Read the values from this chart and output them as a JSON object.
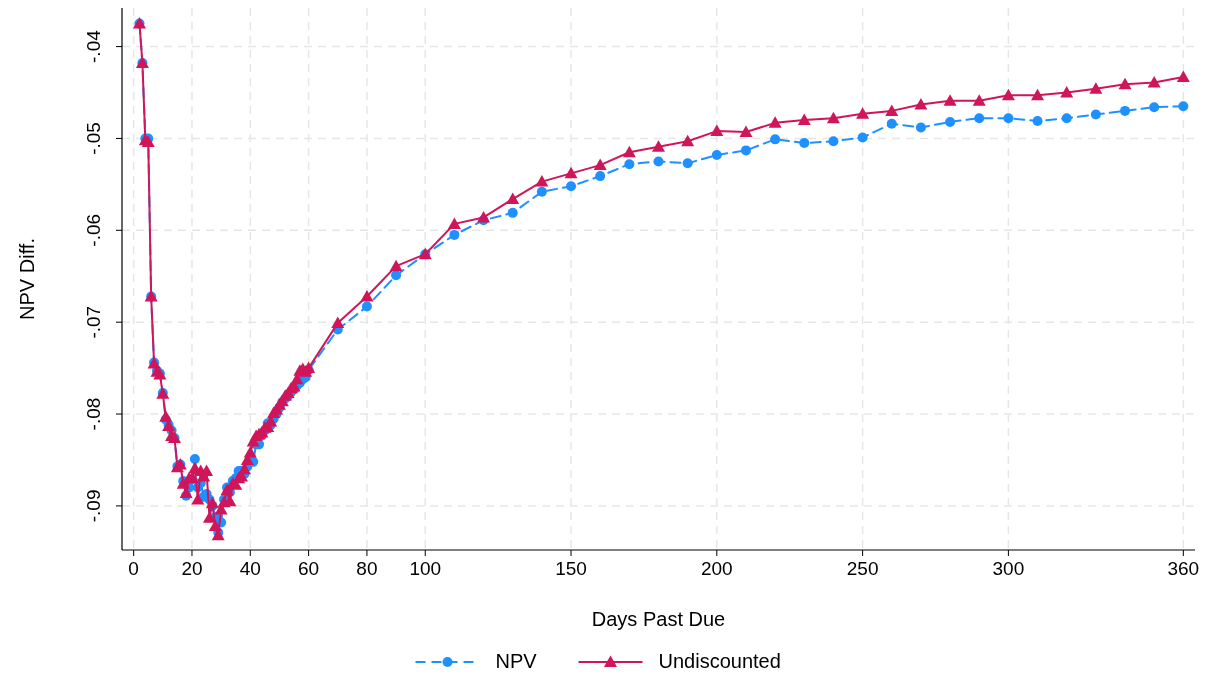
{
  "chart_data": {
    "type": "line",
    "xlabel": "Days Past Due",
    "ylabel": "NPV Diff.",
    "x": [
      2,
      3,
      4,
      5,
      6,
      7,
      8,
      9,
      10,
      11,
      12,
      13,
      14,
      15,
      16,
      17,
      18,
      19,
      20,
      21,
      22,
      23,
      24,
      25,
      26,
      27,
      28,
      29,
      30,
      31,
      32,
      33,
      34,
      35,
      36,
      37,
      38,
      39,
      40,
      41,
      42,
      43,
      44,
      45,
      46,
      47,
      48,
      49,
      50,
      51,
      52,
      53,
      54,
      55,
      56,
      57,
      58,
      59,
      60,
      70,
      80,
      90,
      100,
      110,
      120,
      130,
      140,
      150,
      160,
      170,
      180,
      190,
      200,
      210,
      220,
      230,
      240,
      250,
      260,
      270,
      280,
      290,
      300,
      310,
      320,
      330,
      340,
      350,
      360
    ],
    "series": [
      {
        "name": "NPV",
        "color": "#1e90ff",
        "marker": "circle",
        "line_style": "dashed",
        "values": [
          -0.0375,
          -0.0418,
          -0.05,
          -0.05,
          -0.0672,
          -0.0744,
          -0.0753,
          -0.0756,
          -0.0777,
          -0.0806,
          -0.0812,
          -0.0818,
          -0.0826,
          -0.0857,
          -0.0855,
          -0.0873,
          -0.0889,
          -0.088,
          -0.0871,
          -0.0849,
          -0.088,
          -0.0875,
          -0.089,
          -0.0887,
          -0.0893,
          -0.09,
          -0.0912,
          -0.0929,
          -0.0918,
          -0.0893,
          -0.088,
          -0.0885,
          -0.0873,
          -0.087,
          -0.0862,
          -0.0862,
          -0.0865,
          -0.0857,
          -0.085,
          -0.0852,
          -0.0833,
          -0.0833,
          -0.0823,
          -0.0818,
          -0.081,
          -0.0812,
          -0.0805,
          -0.08,
          -0.0793,
          -0.0787,
          -0.0783,
          -0.078,
          -0.0776,
          -0.0773,
          -0.0769,
          -0.0766,
          -0.0762,
          -0.076,
          -0.0752,
          -0.0708,
          -0.0683,
          -0.0649,
          -0.0626,
          -0.0605,
          -0.0589,
          -0.0581,
          -0.0558,
          -0.0552,
          -0.0541,
          -0.0528,
          -0.0525,
          -0.0527,
          -0.0518,
          -0.0513,
          -0.0501,
          -0.0505,
          -0.0503,
          -0.0499,
          -0.0484,
          -0.0488,
          -0.0482,
          -0.0478,
          -0.0478,
          -0.0481,
          -0.0478,
          -0.0474,
          -0.047,
          -0.0466,
          -0.0465
        ]
      },
      {
        "name": "Undiscounted",
        "color": "#d0155a",
        "marker": "triangle",
        "line_style": "solid",
        "values": [
          -0.0375,
          -0.0418,
          -0.0502,
          -0.0504,
          -0.0672,
          -0.0745,
          -0.0754,
          -0.0757,
          -0.0778,
          -0.0803,
          -0.0813,
          -0.0824,
          -0.0826,
          -0.0858,
          -0.0855,
          -0.0876,
          -0.0886,
          -0.087,
          -0.087,
          -0.0859,
          -0.0893,
          -0.0862,
          -0.0868,
          -0.0862,
          -0.0913,
          -0.0897,
          -0.0922,
          -0.0932,
          -0.0904,
          -0.0896,
          -0.0883,
          -0.0895,
          -0.0876,
          -0.0877,
          -0.087,
          -0.0868,
          -0.086,
          -0.085,
          -0.0842,
          -0.083,
          -0.0824,
          -0.0822,
          -0.082,
          -0.0815,
          -0.0814,
          -0.0808,
          -0.0799,
          -0.0795,
          -0.079,
          -0.0786,
          -0.078,
          -0.0777,
          -0.0772,
          -0.077,
          -0.0762,
          -0.0753,
          -0.0751,
          -0.0754,
          -0.075,
          -0.0701,
          -0.0672,
          -0.0639,
          -0.0626,
          -0.0593,
          -0.0586,
          -0.0566,
          -0.0547,
          -0.0538,
          -0.0529,
          -0.0515,
          -0.0509,
          -0.0503,
          -0.0492,
          -0.0493,
          -0.0483,
          -0.048,
          -0.0478,
          -0.0473,
          -0.047,
          -0.0463,
          -0.0459,
          -0.0459,
          -0.0453,
          -0.0453,
          -0.045,
          -0.0446,
          -0.0441,
          -0.0439,
          -0.0433
        ]
      }
    ],
    "xlim": [
      -4,
      364
    ],
    "xticks": [
      0,
      20,
      40,
      60,
      80,
      100,
      150,
      200,
      250,
      300,
      360
    ],
    "ylim": [
      -0.0948,
      -0.0358
    ],
    "yticks": [
      {
        "value": -0.09,
        "label": "-.09"
      },
      {
        "value": -0.08,
        "label": "-.08"
      },
      {
        "value": -0.07,
        "label": "-.07"
      },
      {
        "value": -0.06,
        "label": "-.06"
      },
      {
        "value": -0.05,
        "label": "-.05"
      },
      {
        "value": -0.04,
        "label": "-.04"
      }
    ],
    "grid": true,
    "legend": "bottom"
  }
}
